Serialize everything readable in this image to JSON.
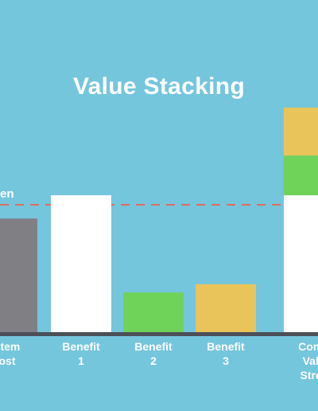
{
  "chart_data": {
    "type": "bar",
    "title": "Value Stacking",
    "categories": [
      "System Cost",
      "Benefit 1",
      "Benefit 2",
      "Benefit 3",
      "Combined Value Streams"
    ],
    "category_labels_visible": [
      "stem\nost",
      "Benefit\n1",
      "Benefit\n2",
      "Benefit\n3",
      "Comb\nValu\nStrea"
    ],
    "stack_segments": [
      {
        "category": "System Cost",
        "from": 0,
        "to": 0.83,
        "color": "#807f84"
      },
      {
        "category": "Benefit 1",
        "from": 0,
        "to": 1.0,
        "color": "#ffffff"
      },
      {
        "category": "Benefit 2",
        "from": 0,
        "to": 0.29,
        "color": "#6fd35a"
      },
      {
        "category": "Benefit 3",
        "from": 0,
        "to": 0.35,
        "color": "#e9c45a"
      },
      {
        "category": "Combined Value Streams",
        "from": 0,
        "to": 1.0,
        "color": "#ffffff"
      },
      {
        "category": "Combined Value Streams",
        "from": 1.0,
        "to": 1.29,
        "color": "#6fd35a"
      },
      {
        "category": "Combined Value Streams",
        "from": 1.29,
        "to": 1.64,
        "color": "#e9c45a"
      }
    ],
    "reference_line": {
      "value": 0.93,
      "label": "en",
      "color": "#e06a5a"
    },
    "ylim": [
      0,
      1.67
    ],
    "grid": false,
    "legend": "none"
  }
}
